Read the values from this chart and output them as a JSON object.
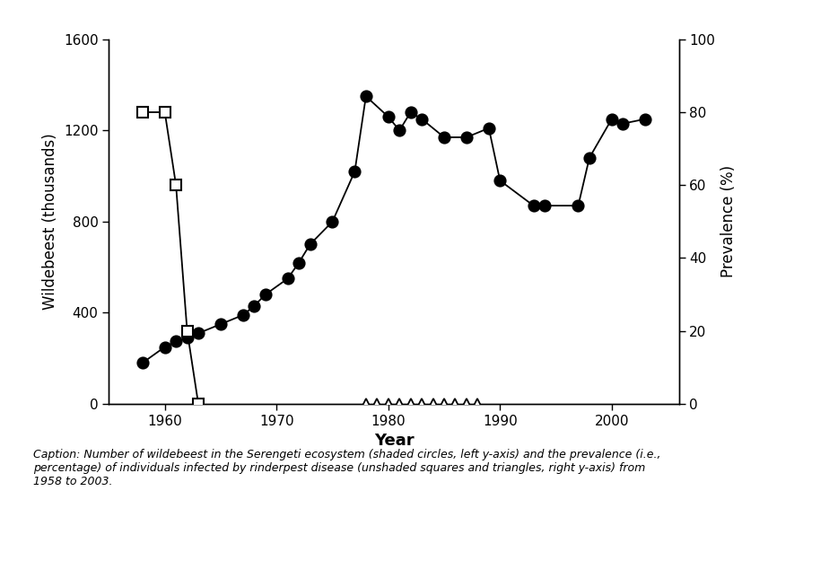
{
  "wildebeest_years": [
    1958,
    1960,
    1961,
    1962,
    1963,
    1965,
    1967,
    1968,
    1969,
    1971,
    1972,
    1973,
    1975,
    1977,
    1978,
    1980,
    1981,
    1982,
    1983,
    1985,
    1987,
    1989,
    1990,
    1993,
    1994,
    1997,
    1998,
    2000,
    2001,
    2003
  ],
  "wildebeest_vals": [
    180,
    250,
    275,
    290,
    310,
    350,
    390,
    430,
    480,
    550,
    620,
    700,
    800,
    1020,
    1350,
    1260,
    1200,
    1280,
    1250,
    1170,
    1170,
    1210,
    980,
    870,
    870,
    870,
    1080,
    1250,
    1230,
    1250
  ],
  "square_years": [
    1958,
    1960,
    1961,
    1962,
    1963
  ],
  "square_vals": [
    80,
    80,
    60,
    20,
    0
  ],
  "triangle_years": [
    1978,
    1979,
    1980,
    1981,
    1982,
    1983,
    1984,
    1985,
    1986,
    1987,
    1988
  ],
  "triangle_vals": [
    0,
    0,
    0,
    0,
    0,
    0,
    0,
    0,
    0,
    0,
    0
  ],
  "left_ylabel": "Wildebeest (thousands)",
  "right_ylabel": "Prevalence (%)",
  "xlabel": "Year",
  "left_ylim": [
    0,
    1600
  ],
  "right_ylim": [
    0,
    100
  ],
  "left_yticks": [
    0,
    400,
    800,
    1200,
    1600
  ],
  "right_yticks": [
    0,
    20,
    40,
    60,
    80,
    100
  ],
  "xticks": [
    1960,
    1970,
    1980,
    1990,
    2000
  ],
  "xlim": [
    1955,
    2006
  ],
  "caption": "Caption: Number of wildebeest in the Serengeti ecosystem (shaded circles, left y-axis) and the prevalence (i.e.,\npercentage) of individuals infected by rinderpest disease (unshaded squares and triangles, right y-axis) from\n1958 to 2003.",
  "bg_color": "#ffffff",
  "line_color": "#000000",
  "marker_color_filled": "#000000",
  "marker_color_open": "#ffffff"
}
